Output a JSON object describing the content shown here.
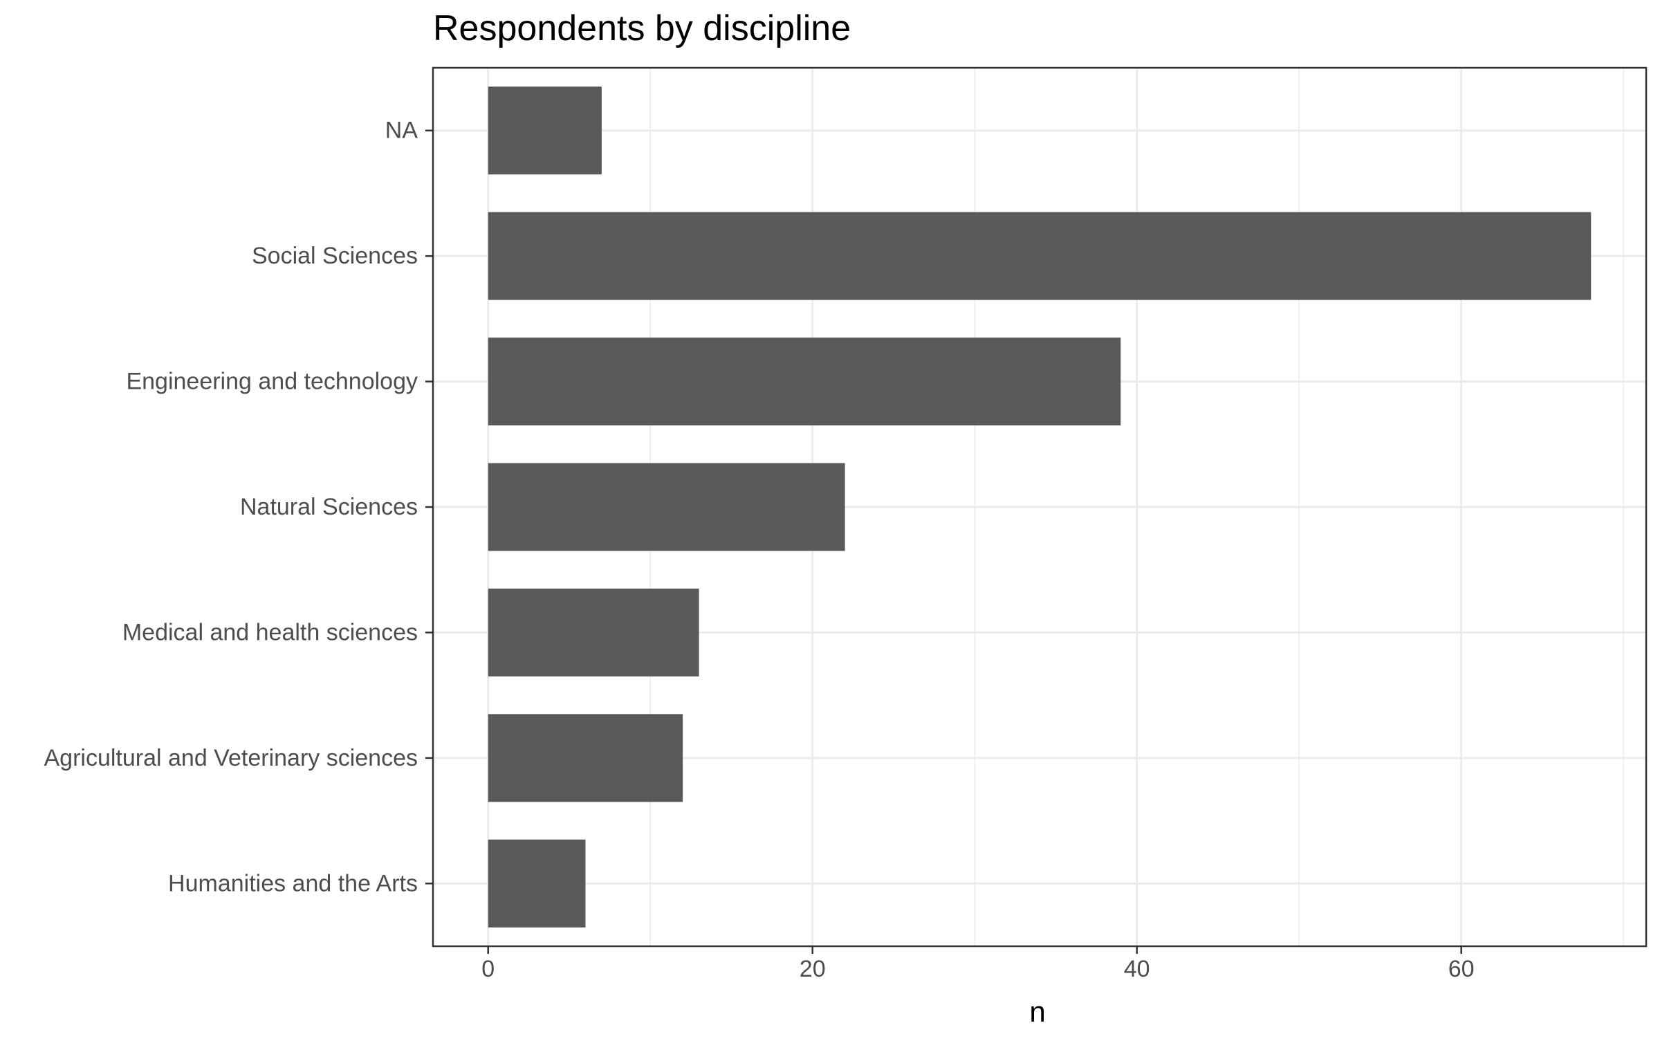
{
  "chart_data": {
    "type": "bar",
    "orientation": "horizontal",
    "title": "Respondents by discipline",
    "xlabel": "n",
    "ylabel": "",
    "categories": [
      "NA",
      "Social Sciences",
      "Engineering and technology",
      "Natural Sciences",
      "Medical and health sciences",
      "Agricultural and Veterinary sciences",
      "Humanities and the Arts"
    ],
    "values": [
      7,
      68,
      39,
      22,
      13,
      12,
      6
    ],
    "xlim": [
      -3.4,
      71.4
    ],
    "xticks": [
      0,
      20,
      40,
      60
    ],
    "xtick_labels": [
      "0",
      "20",
      "40",
      "60"
    ],
    "grid": true,
    "bar_color": "#595959",
    "grid_color": "#ebebeb",
    "panel_border_color": "#333333"
  }
}
